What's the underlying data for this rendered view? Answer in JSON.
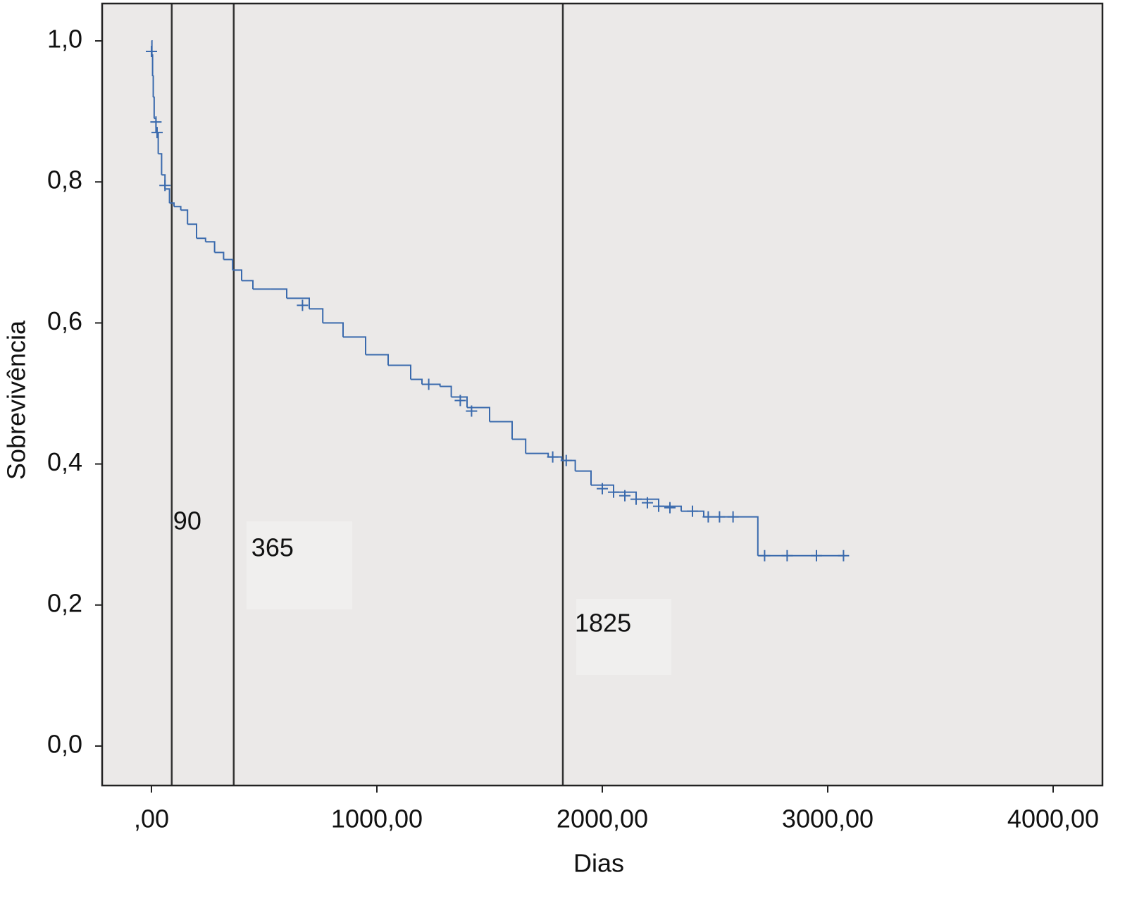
{
  "chart_data": {
    "type": "step",
    "x_label": "Dias",
    "y_label": "Sobrevivência",
    "xlim": [
      -218.75,
      4218.75
    ],
    "ylim": [
      -0.056,
      1.053
    ],
    "xticks": [
      {
        "value": 0,
        "label": ",00"
      },
      {
        "value": 1000,
        "label": "1000,00"
      },
      {
        "value": 2000,
        "label": "2000,00"
      },
      {
        "value": 3000,
        "label": "3000,00"
      },
      {
        "value": 4000,
        "label": "4000,00"
      }
    ],
    "yticks": [
      {
        "value": 0,
        "label": "0,0"
      },
      {
        "value": 0.2,
        "label": "0,2"
      },
      {
        "value": 0.4,
        "label": "0,4"
      },
      {
        "value": 0.6,
        "label": "0,6"
      },
      {
        "value": 0.8,
        "label": "0,8"
      },
      {
        "value": 1.0,
        "label": "1,0"
      }
    ],
    "background": "#ebe9e8",
    "color": "#3a6aad",
    "x": [
      0,
      2,
      5,
      8,
      12,
      20,
      30,
      45,
      60,
      80,
      100,
      130,
      160,
      200,
      240,
      280,
      320,
      360,
      400,
      450,
      530,
      600,
      700,
      760,
      850,
      950,
      1050,
      1150,
      1200,
      1280,
      1330,
      1400,
      1500,
      1600,
      1660,
      1760,
      1820,
      1880,
      1950,
      2050,
      2150,
      2250,
      2350,
      2450,
      2690,
      3075
    ],
    "values": [
      1.0,
      0.98,
      0.95,
      0.92,
      0.89,
      0.87,
      0.84,
      0.81,
      0.79,
      0.77,
      0.765,
      0.76,
      0.74,
      0.72,
      0.715,
      0.7,
      0.69,
      0.675,
      0.66,
      0.648,
      0.648,
      0.635,
      0.62,
      0.6,
      0.58,
      0.555,
      0.54,
      0.52,
      0.513,
      0.51,
      0.495,
      0.48,
      0.46,
      0.435,
      0.415,
      0.41,
      0.405,
      0.39,
      0.37,
      0.36,
      0.35,
      0.34,
      0.333,
      0.325,
      0.27,
      0.27
    ],
    "censored_x": [
      0,
      20,
      25,
      60,
      670,
      1230,
      1370,
      1420,
      1780,
      1840,
      2000,
      2050,
      2100,
      2150,
      2200,
      2250,
      2300,
      2400,
      2470,
      2520,
      2580,
      2720,
      2820,
      2950,
      3070
    ],
    "censored_values": [
      0.985,
      0.885,
      0.87,
      0.795,
      0.625,
      0.513,
      0.49,
      0.475,
      0.41,
      0.405,
      0.365,
      0.36,
      0.355,
      0.35,
      0.345,
      0.34,
      0.338,
      0.333,
      0.325,
      0.325,
      0.325,
      0.27,
      0.27,
      0.27,
      0.27
    ],
    "reference_lines": [
      {
        "x": 90,
        "label": "90"
      },
      {
        "x": 365,
        "label": "365"
      },
      {
        "x": 1825,
        "label": "1825"
      }
    ]
  }
}
